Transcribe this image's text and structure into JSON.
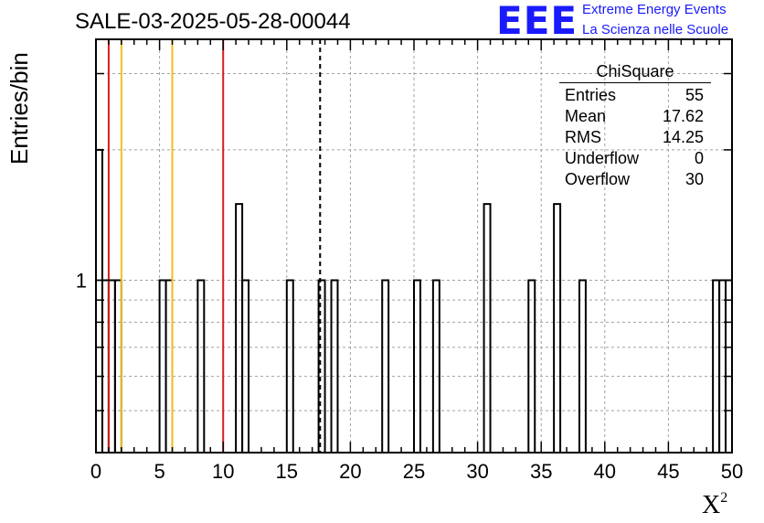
{
  "chart_data": {
    "type": "histogram",
    "title": "SALE-03-2025-05-28-00044",
    "xlabel": "X",
    "xlabel_sup": "2",
    "ylabel": "Entries/bin",
    "xlim": [
      0,
      50
    ],
    "ylim": [
      0.4,
      3.6
    ],
    "yscale": "log",
    "bin_width": 0.5,
    "grid": true,
    "x_ticks": [
      "0",
      "5",
      "10",
      "15",
      "20",
      "25",
      "30",
      "35",
      "40",
      "45",
      "50"
    ],
    "y_ticks": [
      "1"
    ],
    "bins": [
      {
        "x": 0,
        "value": 2
      },
      {
        "x": 0.5,
        "value": 1
      },
      {
        "x": 1,
        "value": 1
      },
      {
        "x": 1.5,
        "value": 1
      },
      {
        "x": 5,
        "value": 1
      },
      {
        "x": 5.5,
        "value": 1
      },
      {
        "x": 8,
        "value": 1
      },
      {
        "x": 11,
        "value": 1.5
      },
      {
        "x": 11.5,
        "value": 1
      },
      {
        "x": 15,
        "value": 1
      },
      {
        "x": 17.5,
        "value": 1
      },
      {
        "x": 18.5,
        "value": 1
      },
      {
        "x": 22.5,
        "value": 1
      },
      {
        "x": 25,
        "value": 1
      },
      {
        "x": 26.5,
        "value": 1
      },
      {
        "x": 30.5,
        "value": 1.5
      },
      {
        "x": 34,
        "value": 1
      },
      {
        "x": 36,
        "value": 1.5
      },
      {
        "x": 38,
        "value": 1
      },
      {
        "x": 48.5,
        "value": 1
      },
      {
        "x": 49,
        "value": 1
      },
      {
        "x": 49.5,
        "value": 1
      }
    ],
    "reference_lines": [
      {
        "x": 1,
        "color": "#d42020",
        "style": "solid"
      },
      {
        "x": 2,
        "color": "#f0c020",
        "style": "solid"
      },
      {
        "x": 6,
        "color": "#f0c020",
        "style": "solid"
      },
      {
        "x": 10,
        "color": "#d42020",
        "style": "solid"
      },
      {
        "x": 17.62,
        "color": "#000000",
        "style": "dashed"
      }
    ],
    "stats": {
      "title": "ChiSquare",
      "rows": [
        {
          "label": "Entries",
          "value": "55"
        },
        {
          "label": "Mean",
          "value": "17.62"
        },
        {
          "label": "RMS",
          "value": "14.25"
        },
        {
          "label": "Underflow",
          "value": "0"
        },
        {
          "label": "Overflow",
          "value": "30"
        }
      ]
    }
  },
  "logo": {
    "mark": "EEE",
    "line1": "Extreme Energy Events",
    "line2": "La Scienza nelle Scuole",
    "color": "#1a1aff"
  }
}
